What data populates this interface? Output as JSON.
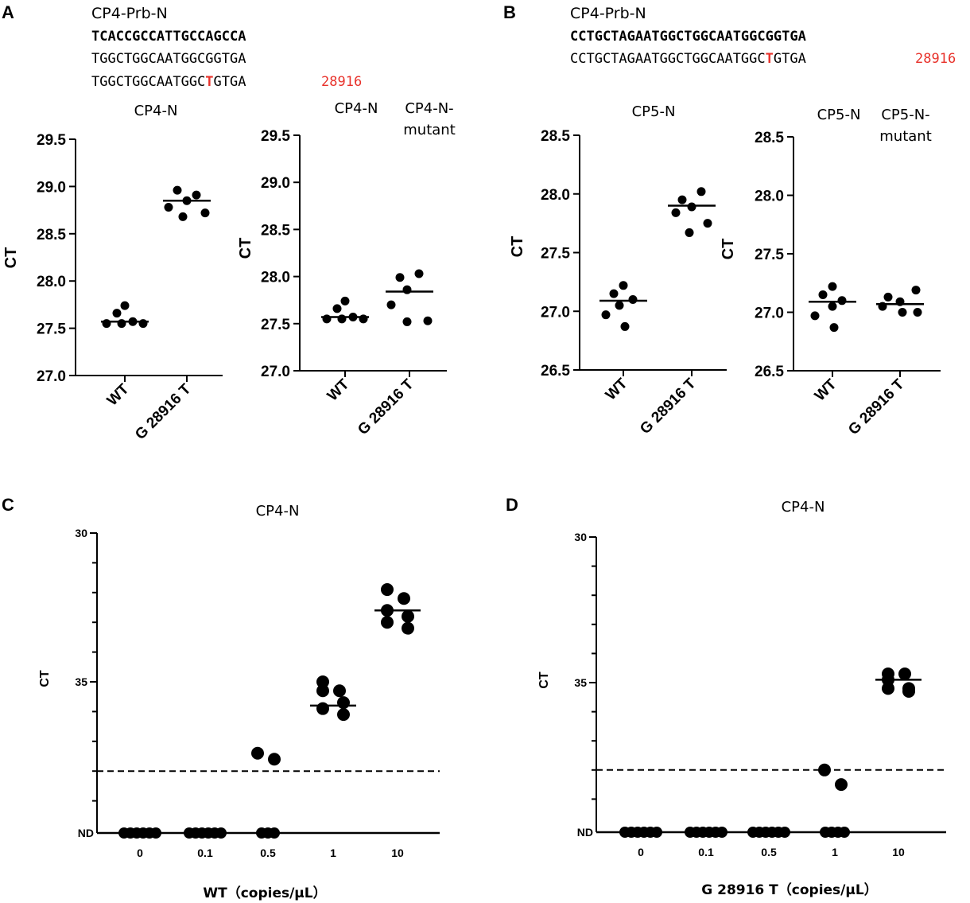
{
  "panels": {
    "A": {
      "letter": "A",
      "probe_title": "CP4-Prb-N",
      "probe_seq": "TCACCGCCATTGCCAGCCA",
      "ref_seq": "TGGCTGGCAATGGCGGTGA",
      "mut_seq_pre": "TGGCTGGCAATGGC",
      "mut_base": "T",
      "mut_seq_post": "GTGA",
      "position": "28916"
    },
    "B": {
      "letter": "B",
      "probe_title": "CP4-Prb-N",
      "probe_seq": "CCTGCTAGAATGGCTGGCAATGGCGGTGA",
      "mut_seq_pre": "CCTGCTAGAATGGCTGGCAATGGC",
      "mut_base": "T",
      "mut_seq_post": "GTGA",
      "position": "28916"
    },
    "C": {
      "letter": "C"
    },
    "D": {
      "letter": "D"
    }
  },
  "chart_data": [
    {
      "id": "A1",
      "type": "scatter",
      "title_lines": [
        "CP4-N"
      ],
      "ylabel": "CT",
      "ylim": [
        27.0,
        29.5
      ],
      "yticks": [
        27.0,
        27.5,
        28.0,
        28.5,
        29.0,
        29.5
      ],
      "ytick_labels": [
        "27.0",
        "27.5",
        "28.0",
        "28.5",
        "29.0",
        "29.5"
      ],
      "categories": [
        "WT",
        "G 28916 T"
      ],
      "points": [
        [
          27.74,
          27.66,
          27.57,
          27.55,
          27.55,
          27.55
        ],
        [
          28.96,
          28.91,
          28.85,
          28.78,
          28.72,
          28.68
        ]
      ],
      "means": [
        27.57,
        28.85
      ]
    },
    {
      "id": "A2",
      "type": "scatter",
      "title_lines": [
        "CP4-N",
        "CP4-N-",
        "mutant"
      ],
      "ylabel": "CT",
      "ylim": [
        27.0,
        29.5
      ],
      "yticks": [
        27.0,
        27.5,
        28.0,
        28.5,
        29.0,
        29.5
      ],
      "ytick_labels": [
        "27.0",
        "27.5",
        "28.0",
        "28.5",
        "29.0",
        "29.5"
      ],
      "categories": [
        "WT",
        "G 28916 T"
      ],
      "points": [
        [
          27.74,
          27.66,
          27.57,
          27.55,
          27.55,
          27.55
        ],
        [
          28.03,
          27.99,
          27.86,
          27.7,
          27.53,
          27.52
        ]
      ],
      "means": [
        27.57,
        27.84
      ]
    },
    {
      "id": "B1",
      "type": "scatter",
      "title_lines": [
        "CP5-N"
      ],
      "ylabel": "CT",
      "ylim": [
        26.5,
        28.5
      ],
      "yticks": [
        26.5,
        27.0,
        27.5,
        28.0,
        28.5
      ],
      "ytick_labels": [
        "26.5",
        "27.0",
        "27.5",
        "28.0",
        "28.5"
      ],
      "categories": [
        "WT",
        "G 28916 T"
      ],
      "points": [
        [
          27.22,
          27.15,
          27.1,
          27.05,
          26.97,
          26.87
        ],
        [
          28.02,
          27.95,
          27.89,
          27.84,
          27.75,
          27.67
        ]
      ],
      "means": [
        27.09,
        27.9
      ]
    },
    {
      "id": "B2",
      "type": "scatter",
      "title_lines": [
        "CP5-N",
        "CP5-N-",
        "mutant"
      ],
      "ylabel": "CT",
      "ylim": [
        26.5,
        28.5
      ],
      "yticks": [
        26.5,
        27.0,
        27.5,
        28.0,
        28.5
      ],
      "ytick_labels": [
        "26.5",
        "27.0",
        "27.5",
        "28.0",
        "28.5"
      ],
      "categories": [
        "WT",
        "G 28916 T"
      ],
      "points": [
        [
          27.22,
          27.15,
          27.1,
          27.05,
          26.97,
          26.87
        ],
        [
          27.19,
          27.13,
          27.09,
          27.05,
          27.0,
          27.0
        ]
      ],
      "means": [
        27.09,
        27.07
      ]
    },
    {
      "id": "C",
      "type": "scatter",
      "title": "CP4-N",
      "ylabel": "CT",
      "xlabel": "WT（copies/μL）",
      "y_axis": "inverted; 30 at top, 35 in middle, ND (not detected) at bottom",
      "ytick_labels": {
        "30": "30",
        "35": "35",
        "ND": "ND"
      },
      "cutoff_ct": 38,
      "categories": [
        "0",
        "0.1",
        "0.5",
        "1",
        "10"
      ],
      "points": [
        [
          "ND",
          "ND",
          "ND",
          "ND",
          "ND",
          "ND"
        ],
        [
          "ND",
          "ND",
          "ND",
          "ND",
          "ND",
          "ND"
        ],
        [
          37.4,
          37.6,
          "ND",
          "ND",
          "ND"
        ],
        [
          35.0,
          35.3,
          35.3,
          35.7,
          35.9,
          36.1
        ],
        [
          31.9,
          32.2,
          32.6,
          32.8,
          33.0,
          33.2
        ]
      ],
      "means": [
        null,
        null,
        null,
        35.8,
        32.6
      ]
    },
    {
      "id": "D",
      "type": "scatter",
      "title": "CP4-N",
      "ylabel": "CT",
      "xlabel": "G 28916 T（copies/μL）",
      "y_axis": "inverted; 30 at top, 35 in middle, ND (not detected) at bottom",
      "ytick_labels": {
        "30": "30",
        "35": "35",
        "ND": "ND"
      },
      "cutoff_ct": 38,
      "categories": [
        "0",
        "0.1",
        "0.5",
        "1",
        "10"
      ],
      "points": [
        [
          "ND",
          "ND",
          "ND",
          "ND",
          "ND",
          "ND"
        ],
        [
          "ND",
          "ND",
          "ND",
          "ND",
          "ND",
          "ND"
        ],
        [
          "ND",
          "ND",
          "ND",
          "ND",
          "ND",
          "ND"
        ],
        [
          38.0,
          38.5,
          "ND",
          "ND",
          "ND",
          "ND"
        ],
        [
          34.7,
          34.7,
          34.9,
          35.2,
          35.2,
          35.3
        ]
      ],
      "means": [
        null,
        null,
        null,
        null,
        34.9
      ]
    }
  ]
}
